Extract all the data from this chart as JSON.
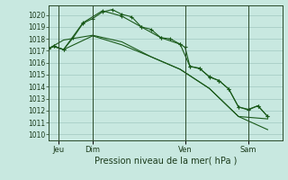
{
  "xlabel": "Pression niveau de la mer( hPa )",
  "bg_color": "#c8e8e0",
  "grid_color": "#a0c8c0",
  "line_color": "#1a5a1a",
  "vline_color": "#2a4a2a",
  "ylim": [
    1009.5,
    1020.8
  ],
  "xlim": [
    0,
    24
  ],
  "ytick_positions": [
    1010,
    1011,
    1012,
    1013,
    1014,
    1015,
    1016,
    1017,
    1018,
    1019,
    1020
  ],
  "xtick_positions": [
    1.0,
    4.5,
    14.0,
    20.5
  ],
  "xtick_labels": [
    "Jeu",
    "Dim",
    "Ven",
    "Sam"
  ],
  "vline_positions": [
    1.0,
    4.5,
    14.0,
    20.5
  ],
  "line1_x": [
    0.0,
    0.5,
    1.5,
    2.5,
    3.5,
    4.5,
    5.5,
    6.5,
    7.5,
    8.5,
    9.5,
    10.5,
    11.5,
    12.5,
    13.5,
    14.0,
    14.5,
    15.5,
    16.5,
    17.5,
    18.5,
    19.5,
    20.5,
    21.5,
    22.5
  ],
  "line1_y": [
    1017.2,
    1017.4,
    1017.1,
    1018.1,
    1019.3,
    1019.7,
    1020.25,
    1020.45,
    1020.05,
    1019.85,
    1019.0,
    1018.8,
    1018.1,
    1018.0,
    1017.55,
    1017.3,
    1015.7,
    1015.55,
    1014.8,
    1014.5,
    1013.8,
    1012.3,
    1012.1,
    1012.4,
    1011.5
  ],
  "line2_x": [
    0.0,
    0.5,
    1.5,
    3.5,
    5.5,
    7.5,
    9.5,
    11.5,
    13.5,
    14.5,
    15.5,
    16.5,
    17.5,
    18.5,
    19.5,
    20.5,
    21.5,
    22.5
  ],
  "line2_y": [
    1017.2,
    1017.4,
    1017.1,
    1019.35,
    1020.35,
    1019.9,
    1019.0,
    1018.1,
    1017.55,
    1015.7,
    1015.5,
    1014.85,
    1014.5,
    1013.8,
    1012.3,
    1012.05,
    1012.4,
    1011.5
  ],
  "line3_x": [
    0.0,
    0.5,
    1.5,
    4.5,
    7.5,
    10.5,
    13.5,
    16.5,
    19.5,
    22.5
  ],
  "line3_y": [
    1017.2,
    1017.35,
    1017.1,
    1018.25,
    1017.5,
    1016.5,
    1015.45,
    1013.85,
    1011.5,
    1011.3
  ],
  "line4_x": [
    0.0,
    1.5,
    4.5,
    7.5,
    10.5,
    13.5,
    16.5,
    19.5,
    22.5
  ],
  "line4_y": [
    1017.2,
    1017.9,
    1018.3,
    1017.75,
    1016.5,
    1015.45,
    1013.85,
    1011.5,
    1010.4
  ]
}
